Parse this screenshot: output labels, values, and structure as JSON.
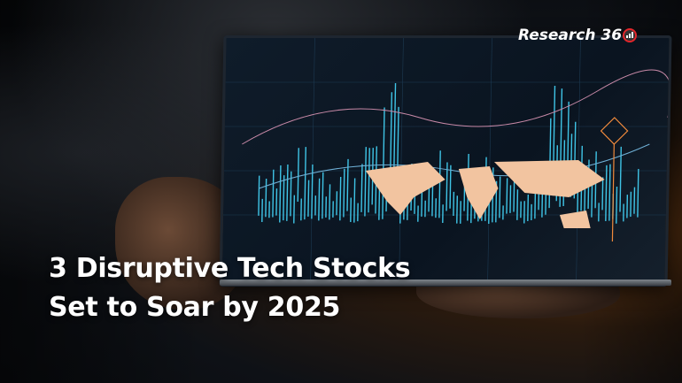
{
  "logo": {
    "text": "Research 36",
    "icon": "red-circle-bar-chart-icon",
    "accent": "#e3262b"
  },
  "headline": {
    "line1": "3 Disruptive Tech Stocks",
    "line2": "Set to Soar by 2025"
  },
  "colors": {
    "chart_cyan": "#3fc4e6",
    "map_peach": "#f2c4a0",
    "chart_orange": "#f08a3c"
  }
}
